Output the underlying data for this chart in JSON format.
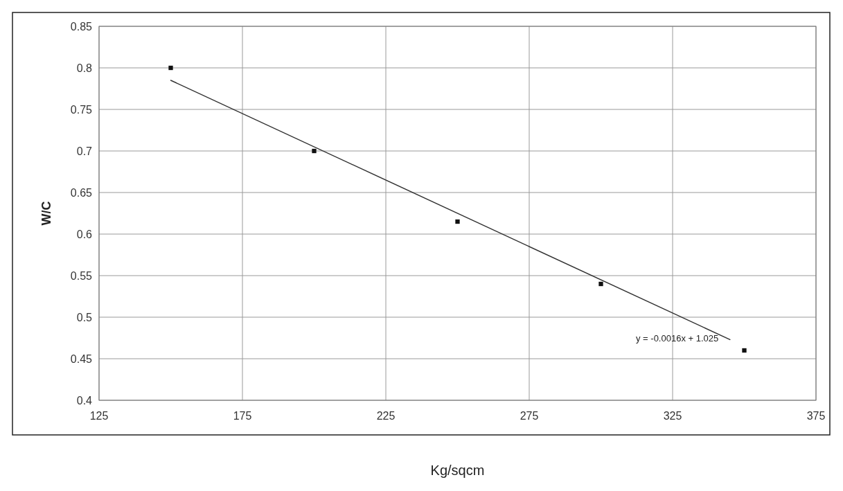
{
  "chart_data": {
    "type": "scatter",
    "xlabel": "Kg/sqcm",
    "ylabel": "W/C",
    "x": [
      150,
      200,
      250,
      300,
      350
    ],
    "series": [
      {
        "color": "#111111",
        "values": [
          0.8,
          0.7,
          0.615,
          0.54,
          0.46
        ],
        "marker": "square"
      },
      {
        "type": "line",
        "color": "#333333",
        "x": [
          150,
          345
        ],
        "values": [
          0.785,
          0.473
        ],
        "marker": "none",
        "line_style": "solid"
      }
    ],
    "annotations": [
      "y = -0.0016x + 1.025"
    ],
    "xlim": [
      125,
      375
    ],
    "xticks": [
      125,
      175,
      225,
      275,
      325,
      375
    ],
    "ylim": [
      0.4,
      0.85
    ],
    "yticks": [
      0.4,
      0.45,
      0.5,
      0.55,
      0.6,
      0.65,
      0.7,
      0.75,
      0.8,
      0.85
    ],
    "grid": true
  }
}
